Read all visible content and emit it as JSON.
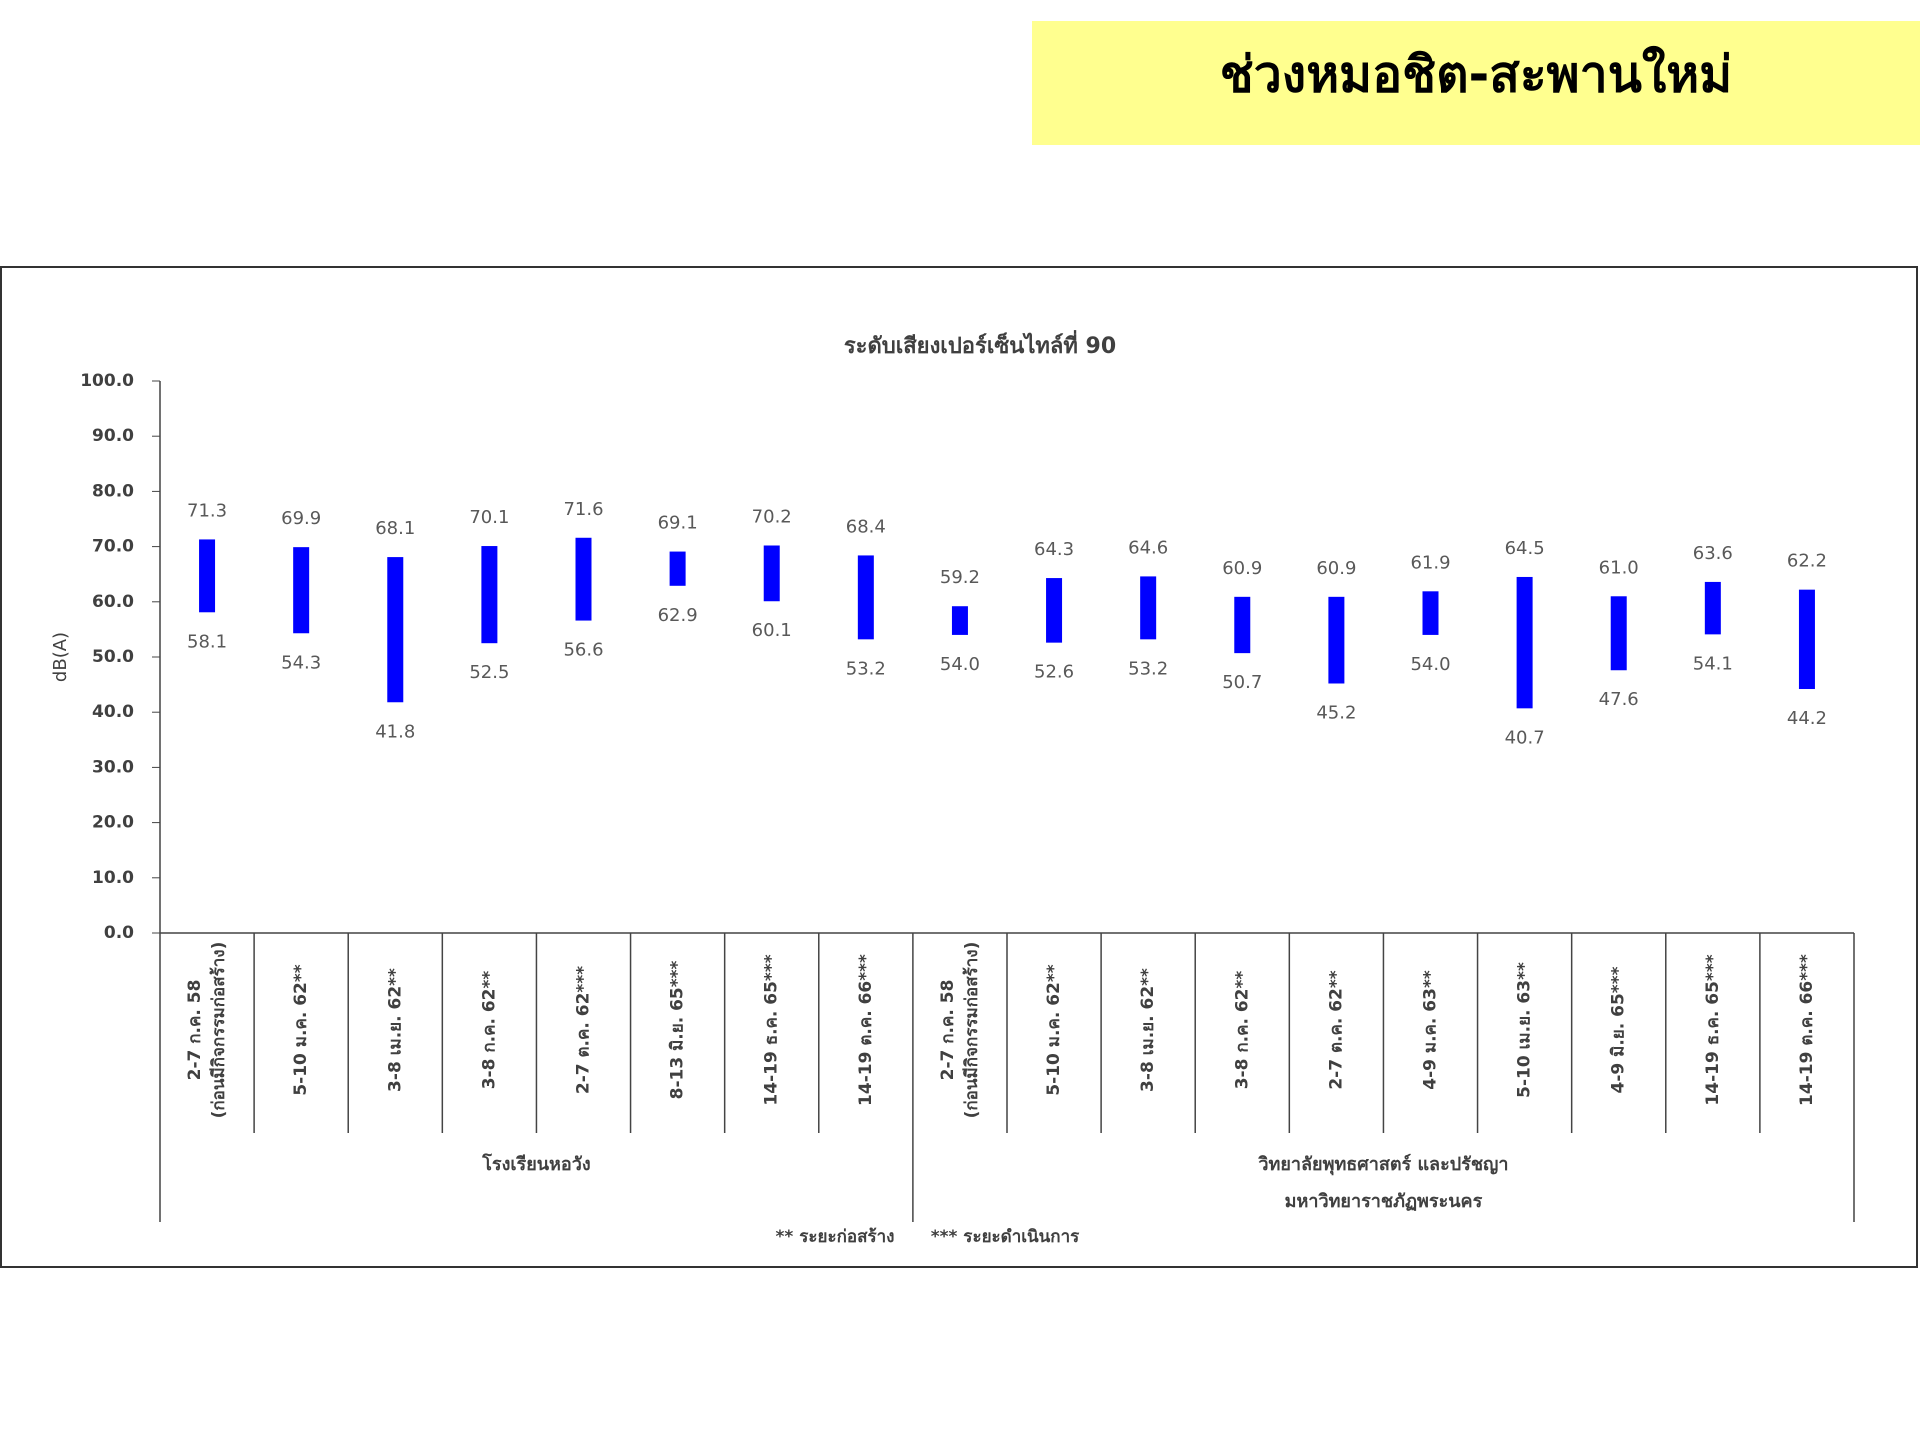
{
  "page_title": "ช่วงหมอชิต-สะพานใหม่",
  "chart_data": {
    "type": "range-bar",
    "title": "ระดับเสียงเปอร์เซ็นไทล์ที่ 90",
    "y_label": "dB(A)",
    "color": "#0000ff",
    "ylim": [
      0,
      100
    ],
    "yticks": [
      {
        "value": 0,
        "label": "0.0"
      },
      {
        "value": 10,
        "label": "10.0"
      },
      {
        "value": 20,
        "label": "20.0"
      },
      {
        "value": 30,
        "label": "30.0"
      },
      {
        "value": 40,
        "label": "40.0"
      },
      {
        "value": 50,
        "label": "50.0"
      },
      {
        "value": 60,
        "label": "60.0"
      },
      {
        "value": 70,
        "label": "70.0"
      },
      {
        "value": 80,
        "label": "80.0"
      },
      {
        "value": 90,
        "label": "90.0"
      },
      {
        "value": 100,
        "label": "100.0"
      }
    ],
    "groups": [
      {
        "name": [
          "โรงเรียนหอวัง"
        ],
        "categories": [
          [
            "2-7 ก.ค. 58",
            "(ก่อนมีกิจกรรมก่อสร้าง)"
          ],
          [
            "5-10 ม.ค. 62**"
          ],
          [
            "3-8 เม.ย. 62**"
          ],
          [
            "3-8 ก.ค. 62**"
          ],
          [
            "2-7 ต.ค. 62***"
          ],
          [
            "8-13 มิ.ย. 65***"
          ],
          [
            "14-19 ธ.ค. 65***"
          ],
          [
            "14-19 ต.ค. 66***"
          ]
        ],
        "high": [
          71.3,
          69.9,
          68.1,
          70.1,
          71.6,
          69.1,
          70.2,
          68.4
        ],
        "high_labels": [
          "71.3",
          "69.9",
          "68.1",
          "70.1",
          "71.6",
          "69.1",
          "70.2",
          "68.4"
        ],
        "low": [
          58.1,
          54.3,
          41.8,
          52.5,
          56.6,
          62.9,
          60.1,
          53.2
        ],
        "low_labels": [
          "58.1",
          "54.3",
          "41.8",
          "52.5",
          "56.6",
          "62.9",
          "60.1",
          "53.2"
        ]
      },
      {
        "name": [
          "วิทยาลัยพุทธศาสตร์ และปรัชญา",
          "มหาวิทยาราชภัฏพระนคร"
        ],
        "categories": [
          [
            "2-7 ก.ค. 58",
            "(ก่อนมีกิจกรรมก่อสร้าง)"
          ],
          [
            "5-10 ม.ค. 62**"
          ],
          [
            "3-8 เม.ย. 62**"
          ],
          [
            "3-8 ก.ค. 62**"
          ],
          [
            "2-7 ต.ค. 62**"
          ],
          [
            "4-9 ม.ค. 63**"
          ],
          [
            "5-10 เม.ย. 63**"
          ],
          [
            "4-9 มิ.ย. 65***"
          ],
          [
            "14-19 ธ.ค. 65***"
          ],
          [
            "14-19 ต.ค. 66***"
          ]
        ],
        "high": [
          59.2,
          64.3,
          64.6,
          60.9,
          60.9,
          61.9,
          64.5,
          61.0,
          63.6,
          62.2
        ],
        "high_labels": [
          "59.2",
          "64.3",
          "64.6",
          "60.9",
          "60.9",
          "61.9",
          "64.5",
          "61.0",
          "63.6",
          "62.2"
        ],
        "low": [
          54.0,
          52.6,
          53.2,
          50.7,
          45.2,
          54.0,
          40.7,
          47.6,
          54.1,
          44.2
        ],
        "low_labels": [
          "54.0",
          "52.6",
          "53.2",
          "50.7",
          "45.2",
          "54.0",
          "40.7",
          "47.6",
          "54.1",
          "44.2"
        ]
      }
    ],
    "notes": [
      "** ระยะก่อสร้าง",
      "*** ระยะดำเนินการ"
    ]
  }
}
